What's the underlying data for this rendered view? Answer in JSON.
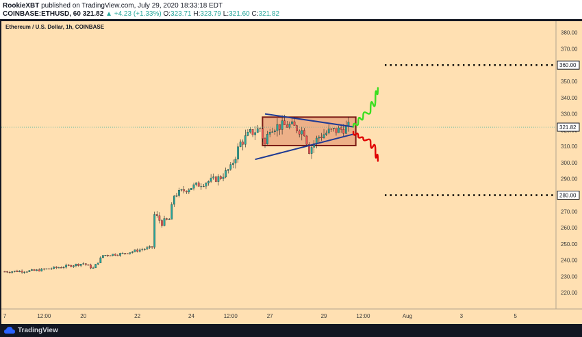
{
  "header": {
    "author": "RookieXBT",
    "published": "published on TradingView.com, July 29, 2020 18:33:18 EDT",
    "symbol": "COINBASE:ETHUSD, 60",
    "last": "321.82",
    "change": "+4.23 (+1.33%)",
    "o_label": "O:",
    "o_value": "323.71",
    "h_label": "H:",
    "h_value": "323.79",
    "l_label": "L:",
    "l_value": "321.60",
    "c_label": "C:",
    "c_value": "321.82"
  },
  "brand": "TradingView",
  "chart_data": {
    "type": "candlestick",
    "title": "Ethereum / U.S. Dollar, 1h, COINBASE",
    "colors": {
      "background": "#ffe0b2",
      "up": "#26a69a",
      "down": "#ef5350",
      "wick": "#1a1a1a"
    },
    "ylim": [
      210,
      387
    ],
    "y_ticks": [
      220,
      230,
      240,
      250,
      260,
      270,
      280,
      290,
      300,
      310,
      320,
      330,
      340,
      350,
      360,
      370,
      380
    ],
    "x_tick_labels": [
      "7",
      "12:00",
      "20",
      "22",
      "24",
      "12:00",
      "27",
      "29",
      "12:00",
      "Aug",
      "3",
      "5"
    ],
    "x_tick_slots": [
      0,
      8,
      16,
      27,
      38,
      46,
      54,
      65,
      73,
      82,
      93,
      104
    ],
    "price_path": [
      [
        0,
        233
      ],
      [
        6,
        233.5
      ],
      [
        12,
        236
      ],
      [
        16,
        238
      ],
      [
        18,
        235
      ],
      [
        20,
        243
      ],
      [
        24,
        244
      ],
      [
        27,
        246
      ],
      [
        30,
        248
      ],
      [
        30.5,
        268
      ],
      [
        32,
        263
      ],
      [
        33.5,
        265
      ],
      [
        34.5,
        280
      ],
      [
        38,
        285
      ],
      [
        41,
        288
      ],
      [
        44,
        291
      ],
      [
        46,
        297
      ],
      [
        48,
        312
      ],
      [
        50,
        318
      ],
      [
        52,
        321
      ],
      [
        53,
        311
      ],
      [
        54,
        322
      ],
      [
        58,
        323
      ],
      [
        61,
        319
      ],
      [
        62,
        308
      ],
      [
        64,
        316
      ],
      [
        66,
        319
      ],
      [
        68,
        320
      ],
      [
        70,
        322
      ]
    ],
    "pattern_box": {
      "x": [
        52.5,
        71.5
      ],
      "y": [
        310.5,
        328
      ]
    },
    "triangle": {
      "upper": [
        [
          53,
          330
        ],
        [
          71,
          322
        ]
      ],
      "lower": [
        [
          51,
          302
        ],
        [
          71,
          317.5
        ]
      ]
    },
    "levels": [
      {
        "label": "360.00",
        "value": 360
      },
      {
        "label": "280.00",
        "value": 280
      }
    ],
    "last_price_label": "321.82",
    "scenarios": [
      {
        "name": "bull",
        "color": "#3bde1f",
        "points": [
          [
            71,
            322
          ],
          [
            72,
            325
          ],
          [
            73,
            329
          ],
          [
            74.5,
            332
          ],
          [
            75.5,
            340
          ],
          [
            76,
            346
          ]
        ]
      },
      {
        "name": "bear",
        "color": "#e00000",
        "points": [
          [
            71,
            319
          ],
          [
            72,
            316
          ],
          [
            73,
            315
          ],
          [
            74.5,
            313
          ],
          [
            75.5,
            307
          ],
          [
            76,
            301
          ]
        ]
      }
    ]
  }
}
